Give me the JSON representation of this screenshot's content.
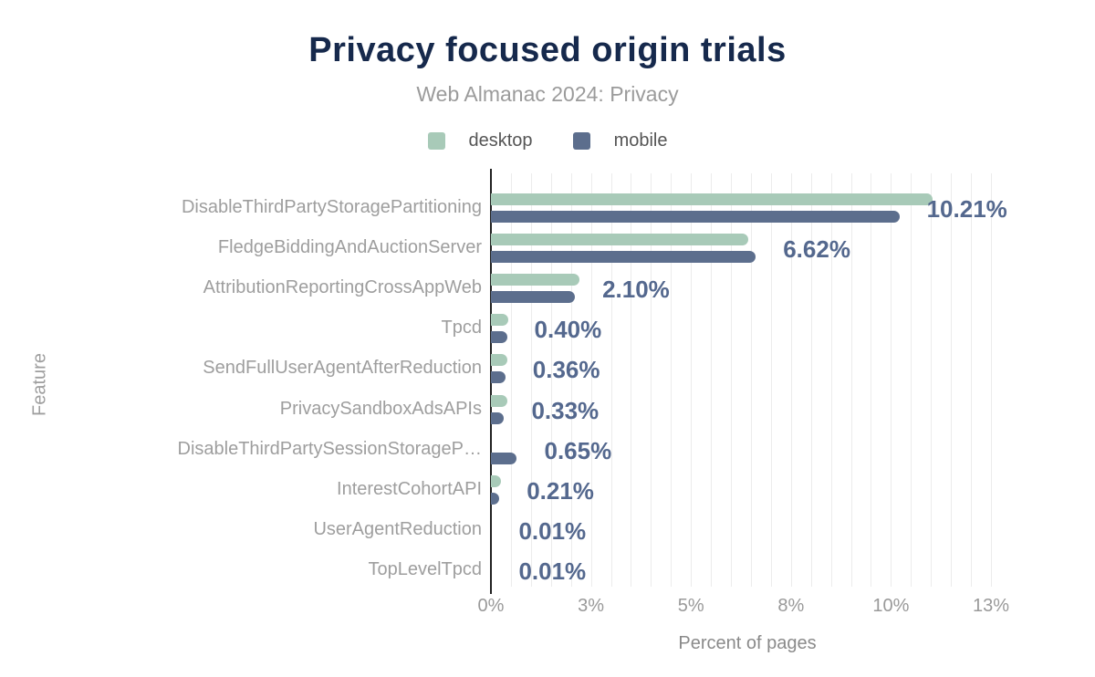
{
  "colors": {
    "title": "#16294c",
    "subtitle": "#9b9b9b",
    "desktop": "#a8cab8",
    "mobile": "#5c6e8d",
    "value_label": "#54688e",
    "axis_text": "#999999",
    "gridline": "#ececec"
  },
  "chart_data": {
    "type": "bar",
    "orientation": "horizontal",
    "title": "Privacy focused origin trials",
    "subtitle": "Web Almanac 2024: Privacy",
    "xlabel": "Percent of pages",
    "ylabel": "Feature",
    "xlim": [
      0,
      12.8
    ],
    "grid": true,
    "gridline_step_pct": 0.5,
    "legend_position": "top",
    "legend": [
      {
        "name": "desktop",
        "color": "#a8cab8"
      },
      {
        "name": "mobile",
        "color": "#5c6e8d"
      }
    ],
    "x_ticks": [
      {
        "value": 0,
        "label": "0%"
      },
      {
        "value": 2.5,
        "label": "3%"
      },
      {
        "value": 5,
        "label": "5%"
      },
      {
        "value": 7.5,
        "label": "8%"
      },
      {
        "value": 10,
        "label": "10%"
      },
      {
        "value": 12.5,
        "label": "13%"
      }
    ],
    "categories": [
      "DisableThirdPartyStoragePartitioning",
      "FledgeBiddingAndAuctionServer",
      "AttributionReportingCrossAppWeb",
      "Tpcd",
      "SendFullUserAgentAfterReduction",
      "PrivacySandboxAdsAPIs",
      "DisableThirdPartySessionStorageP…",
      "InterestCohortAPI",
      "UserAgentReduction",
      "TopLevelTpcd"
    ],
    "series": [
      {
        "name": "desktop",
        "values": [
          11.05,
          6.44,
          2.21,
          0.43,
          0.4,
          0.4,
          0,
          0.25,
          0.01,
          0.01
        ]
      },
      {
        "name": "mobile",
        "values": [
          10.21,
          6.62,
          2.1,
          0.4,
          0.36,
          0.33,
          0.65,
          0.21,
          0.01,
          0.01
        ]
      }
    ],
    "value_labels": [
      "10.21%",
      "6.62%",
      "2.10%",
      "0.40%",
      "0.36%",
      "0.33%",
      "0.65%",
      "0.21%",
      "0.01%",
      "0.01%"
    ]
  }
}
